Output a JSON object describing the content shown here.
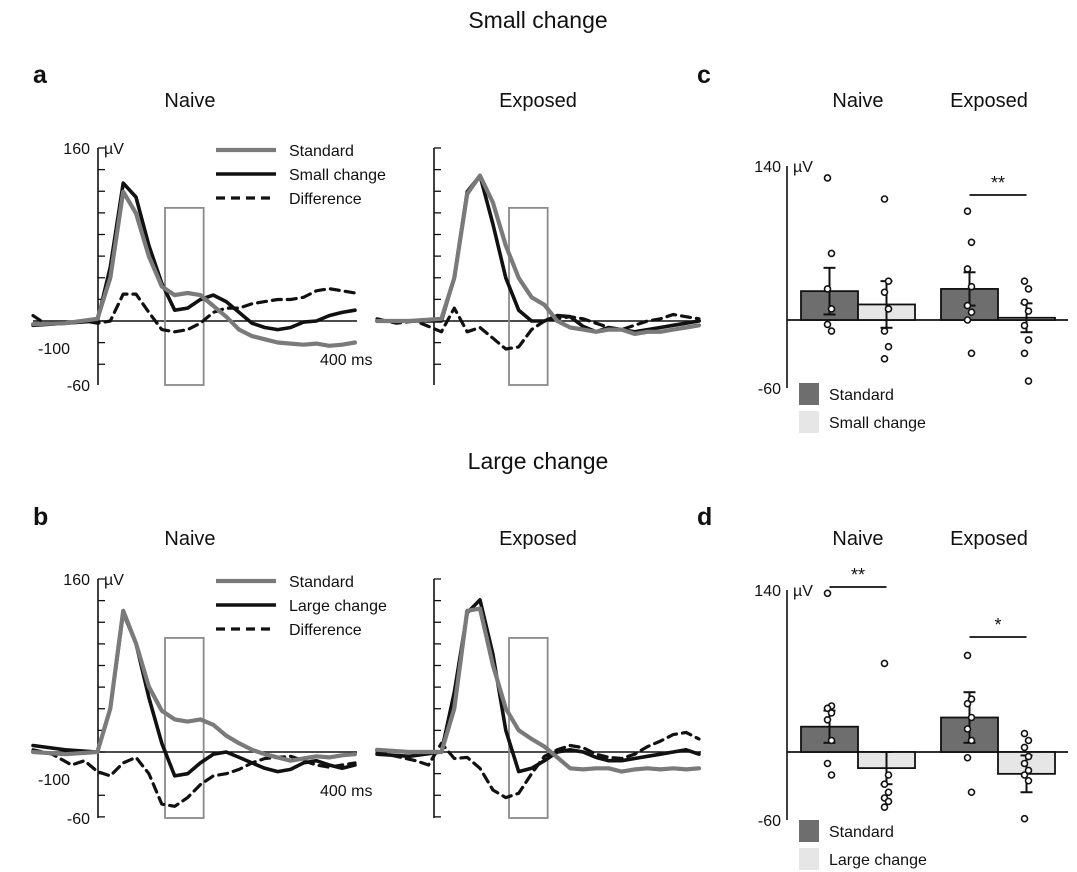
{
  "figure": {
    "top_title": "Small change",
    "mid_title": "Large change",
    "panel_labels": {
      "a": "a",
      "b": "b",
      "c": "c",
      "d": "d"
    },
    "group_labels": {
      "naive": "Naive",
      "exposed": "Exposed"
    },
    "unit": "µV",
    "time_label": "400 ms",
    "baseline_label": "-100"
  },
  "colors": {
    "standard": "#7a7a7a",
    "change": "#111111",
    "difference": "#111111",
    "bar_standard": "#6e6e6e",
    "bar_change": "#e6e6e6",
    "box": "#8a8a8a"
  },
  "chart_data": [
    {
      "id": "a",
      "type": "line",
      "ylim": [
        -60,
        160
      ],
      "xlim": [
        -100,
        400
      ],
      "ytick_labels": [
        "160",
        "-60"
      ],
      "legend": {
        "placement": "top-right",
        "entries": [
          "Standard",
          "Small change",
          "Difference"
        ]
      },
      "window_ms": [
        105,
        165
      ],
      "panels": [
        {
          "group": "Naive",
          "series": {
            "standard": {
              "x": [
                -100,
                -50,
                0,
                20,
                40,
                60,
                80,
                100,
                120,
                140,
                160,
                180,
                200,
                220,
                240,
                260,
                280,
                300,
                320,
                340,
                360,
                380,
                400
              ],
              "y": [
                -3,
                -2,
                2,
                40,
                120,
                100,
                60,
                32,
                24,
                26,
                24,
                14,
                4,
                -8,
                -14,
                -17,
                -20,
                -21,
                -22,
                -21,
                -23,
                -22,
                -20
              ]
            },
            "change": {
              "x": [
                -100,
                -50,
                0,
                20,
                40,
                60,
                80,
                100,
                120,
                140,
                160,
                180,
                200,
                220,
                240,
                260,
                280,
                300,
                320,
                340,
                360,
                380,
                400
              ],
              "y": [
                -4,
                -2,
                0,
                50,
                128,
                115,
                70,
                35,
                10,
                12,
                20,
                24,
                18,
                8,
                -2,
                -6,
                -8,
                -6,
                -1,
                0,
                5,
                8,
                10
              ]
            },
            "difference": {
              "x": [
                -100,
                -80,
                -50,
                -20,
                0,
                20,
                40,
                60,
                80,
                100,
                120,
                140,
                160,
                180,
                200,
                220,
                240,
                260,
                280,
                300,
                320,
                340,
                360,
                380,
                400
              ],
              "y": [
                5,
                -3,
                -2,
                0,
                -2,
                0,
                25,
                25,
                8,
                -8,
                -10,
                -8,
                -2,
                8,
                12,
                12,
                16,
                18,
                20,
                20,
                22,
                28,
                30,
                28,
                26
              ]
            }
          }
        },
        {
          "group": "Exposed",
          "series": {
            "standard": {
              "x": [
                -100,
                -50,
                0,
                20,
                40,
                60,
                80,
                100,
                120,
                140,
                160,
                180,
                200,
                220,
                240,
                260,
                280,
                300,
                320,
                340,
                360,
                380,
                400
              ],
              "y": [
                0,
                0,
                2,
                40,
                118,
                135,
                110,
                70,
                40,
                22,
                15,
                0,
                -6,
                -8,
                -10,
                -8,
                -8,
                -12,
                -10,
                -10,
                -8,
                -6,
                -4
              ]
            },
            "change": {
              "x": [
                -100,
                -50,
                0,
                20,
                40,
                60,
                80,
                100,
                120,
                140,
                160,
                180,
                200,
                220,
                240,
                260,
                280,
                300,
                320,
                340,
                360,
                380,
                400
              ],
              "y": [
                0,
                0,
                0,
                40,
                120,
                135,
                90,
                40,
                10,
                0,
                0,
                5,
                4,
                -5,
                -10,
                -6,
                -8,
                -10,
                -8,
                -6,
                -4,
                -2,
                0
              ]
            },
            "difference": {
              "x": [
                -100,
                -70,
                -40,
                -20,
                0,
                20,
                40,
                60,
                80,
                100,
                120,
                140,
                160,
                180,
                200,
                220,
                240,
                260,
                280,
                300,
                320,
                340,
                360,
                380,
                400
              ],
              "y": [
                2,
                -2,
                0,
                -5,
                -10,
                12,
                -10,
                -6,
                -16,
                -26,
                -24,
                -8,
                0,
                2,
                4,
                2,
                -2,
                -6,
                -8,
                -4,
                0,
                2,
                6,
                4,
                2
              ]
            }
          }
        }
      ]
    },
    {
      "id": "b",
      "type": "line",
      "ylim": [
        -60,
        160
      ],
      "xlim": [
        -100,
        400
      ],
      "ytick_labels": [
        "160",
        "-60"
      ],
      "legend": {
        "placement": "top-right",
        "entries": [
          "Standard",
          "Large change",
          "Difference"
        ]
      },
      "window_ms": [
        105,
        165
      ],
      "panels": [
        {
          "group": "Naive",
          "series": {
            "standard": {
              "x": [
                -100,
                -50,
                0,
                20,
                40,
                60,
                80,
                100,
                120,
                140,
                160,
                180,
                200,
                220,
                240,
                260,
                280,
                300,
                320,
                340,
                360,
                380,
                400
              ],
              "y": [
                0,
                -2,
                0,
                40,
                130,
                100,
                60,
                38,
                30,
                28,
                30,
                25,
                15,
                8,
                2,
                -2,
                -5,
                -8,
                -6,
                -4,
                -5,
                -3,
                -2
              ]
            },
            "change": {
              "x": [
                -100,
                -50,
                0,
                20,
                40,
                60,
                80,
                100,
                120,
                140,
                160,
                180,
                200,
                220,
                240,
                260,
                280,
                300,
                320,
                340,
                360,
                380,
                400
              ],
              "y": [
                6,
                2,
                0,
                40,
                128,
                100,
                50,
                8,
                -22,
                -20,
                -10,
                -2,
                0,
                -5,
                -10,
                -15,
                -18,
                -16,
                -10,
                -8,
                -12,
                -15,
                -12
              ]
            },
            "difference": {
              "x": [
                -100,
                -70,
                -40,
                -20,
                0,
                20,
                40,
                60,
                80,
                100,
                120,
                140,
                160,
                180,
                200,
                220,
                240,
                260,
                280,
                300,
                320,
                340,
                360,
                380,
                400
              ],
              "y": [
                2,
                -2,
                -12,
                -8,
                -18,
                -22,
                -10,
                -5,
                -20,
                -48,
                -50,
                -42,
                -30,
                -22,
                -20,
                -16,
                -10,
                -6,
                -5,
                -4,
                -8,
                -12,
                -14,
                -12,
                -10
              ]
            }
          }
        },
        {
          "group": "Exposed",
          "series": {
            "standard": {
              "x": [
                -100,
                -50,
                0,
                20,
                40,
                60,
                80,
                100,
                120,
                140,
                160,
                180,
                200,
                220,
                240,
                260,
                280,
                300,
                320,
                340,
                360,
                380,
                400
              ],
              "y": [
                2,
                0,
                0,
                40,
                130,
                132,
                80,
                40,
                20,
                12,
                5,
                -5,
                -15,
                -16,
                -15,
                -15,
                -18,
                -16,
                -15,
                -16,
                -15,
                -16,
                -15
              ]
            },
            "change": {
              "x": [
                -100,
                -50,
                0,
                20,
                40,
                60,
                80,
                100,
                120,
                140,
                160,
                180,
                200,
                220,
                240,
                260,
                280,
                300,
                320,
                340,
                360,
                380,
                400
              ],
              "y": [
                -2,
                -4,
                0,
                55,
                128,
                140,
                90,
                20,
                -18,
                -15,
                -8,
                0,
                2,
                0,
                -5,
                -8,
                -8,
                -6,
                -4,
                -2,
                0,
                2,
                -2
              ]
            },
            "difference": {
              "x": [
                -100,
                -70,
                -40,
                -20,
                0,
                20,
                40,
                60,
                80,
                100,
                120,
                140,
                160,
                180,
                200,
                220,
                240,
                260,
                280,
                300,
                320,
                340,
                360,
                380,
                400
              ],
              "y": [
                0,
                -4,
                -8,
                -12,
                8,
                -6,
                -5,
                -15,
                -35,
                -42,
                -38,
                -20,
                -4,
                2,
                6,
                4,
                -2,
                -5,
                -6,
                -2,
                5,
                10,
                16,
                18,
                12
              ]
            }
          }
        }
      ]
    },
    {
      "id": "c",
      "type": "bar",
      "ylim": [
        -60,
        140
      ],
      "ytick_labels": [
        "140",
        "-60"
      ],
      "legend": {
        "placement": "bottom-left",
        "entries": [
          "Standard",
          "Small change"
        ]
      },
      "groups": [
        "Naive",
        "Exposed"
      ],
      "series": [
        {
          "name": "Standard",
          "values": [
            26,
            28
          ],
          "errors": [
            21,
            15
          ]
        },
        {
          "name": "Small change",
          "values": [
            14,
            2
          ],
          "errors": [
            21,
            13
          ]
        }
      ],
      "points": [
        [
          [
            128,
            60,
            28,
            10,
            -4,
            -10
          ],
          [
            109,
            35,
            25,
            10,
            -10,
            -24,
            -35
          ]
        ],
        [
          [
            98,
            70,
            46,
            30,
            13,
            7,
            0,
            -30
          ],
          [
            35,
            28,
            16,
            8,
            -5,
            -18,
            -30,
            -55
          ]
        ]
      ],
      "significance": [
        {
          "group": "Exposed",
          "label": "**"
        }
      ]
    },
    {
      "id": "d",
      "type": "bar",
      "ylim": [
        -60,
        140
      ],
      "ytick_labels": [
        "140",
        "-60"
      ],
      "legend": {
        "placement": "bottom-left",
        "entries": [
          "Standard",
          "Large change"
        ]
      },
      "groups": [
        "Naive",
        "Exposed"
      ],
      "series": [
        {
          "name": "Standard",
          "values": [
            22,
            30
          ],
          "errors": [
            14,
            22
          ]
        },
        {
          "name": "Large change",
          "values": [
            -14,
            -19
          ],
          "errors": [
            14,
            16
          ]
        }
      ],
      "points": [
        [
          [
            138,
            40,
            38,
            34,
            28,
            10,
            -10,
            -20
          ],
          [
            77,
            -20,
            -28,
            -35,
            -40,
            -43,
            -48
          ]
        ],
        [
          [
            84,
            46,
            42,
            30,
            20,
            10,
            -5,
            -35
          ],
          [
            16,
            10,
            4,
            -4,
            -10,
            -16,
            -20,
            -25,
            -58
          ]
        ]
      ],
      "significance": [
        {
          "group": "Naive",
          "label": "**"
        },
        {
          "group": "Exposed",
          "label": "*"
        }
      ]
    }
  ]
}
